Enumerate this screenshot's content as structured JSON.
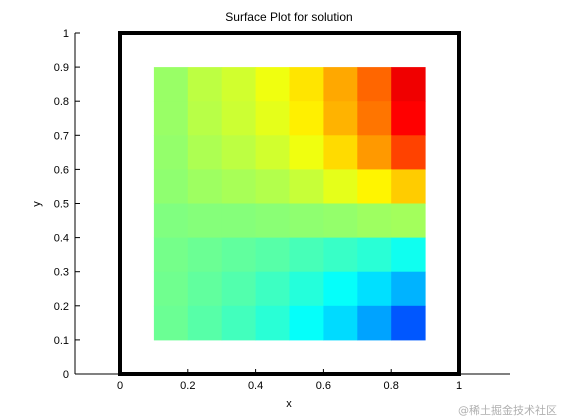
{
  "chart_data": {
    "type": "heatmap",
    "title": "Surface Plot for solution",
    "xlabel": "x",
    "ylabel": "y",
    "xlim": [
      0,
      1
    ],
    "ylim": [
      0,
      1
    ],
    "x_ticks": [
      "0",
      "0.2",
      "0.4",
      "0.6",
      "0.8",
      "1"
    ],
    "y_ticks": [
      "0",
      "0.1",
      "0.2",
      "0.3",
      "0.4",
      "0.5",
      "0.6",
      "0.7",
      "0.8",
      "0.9",
      "1"
    ],
    "x_edges": [
      0.1,
      0.2,
      0.3,
      0.4,
      0.5,
      0.6,
      0.7,
      0.8,
      0.9
    ],
    "y_edges": [
      0.1,
      0.2,
      0.3,
      0.4,
      0.5,
      0.6,
      0.7,
      0.8,
      0.9
    ],
    "colormap": "jet",
    "clim": [
      -1,
      1
    ],
    "values": [
      [
        0.05,
        0.12,
        0.16,
        0.22,
        0.3,
        0.42,
        0.55,
        0.78
      ],
      [
        0.05,
        0.11,
        0.15,
        0.2,
        0.28,
        0.4,
        0.52,
        0.75
      ],
      [
        0.04,
        0.09,
        0.12,
        0.16,
        0.22,
        0.32,
        0.45,
        0.62
      ],
      [
        0.03,
        0.06,
        0.08,
        0.1,
        0.14,
        0.2,
        0.27,
        0.35
      ],
      [
        0.0,
        0.01,
        0.01,
        0.02,
        0.03,
        0.04,
        0.06,
        0.07
      ],
      [
        -0.02,
        -0.04,
        -0.06,
        -0.08,
        -0.11,
        -0.14,
        -0.17,
        -0.22
      ],
      [
        -0.03,
        -0.06,
        -0.09,
        -0.13,
        -0.18,
        -0.24,
        -0.31,
        -0.4
      ],
      [
        -0.04,
        -0.08,
        -0.12,
        -0.17,
        -0.24,
        -0.32,
        -0.43,
        -0.58
      ]
    ],
    "row_order": "top-to-bottom"
  },
  "watermark": "@稀土掘金技术社区"
}
